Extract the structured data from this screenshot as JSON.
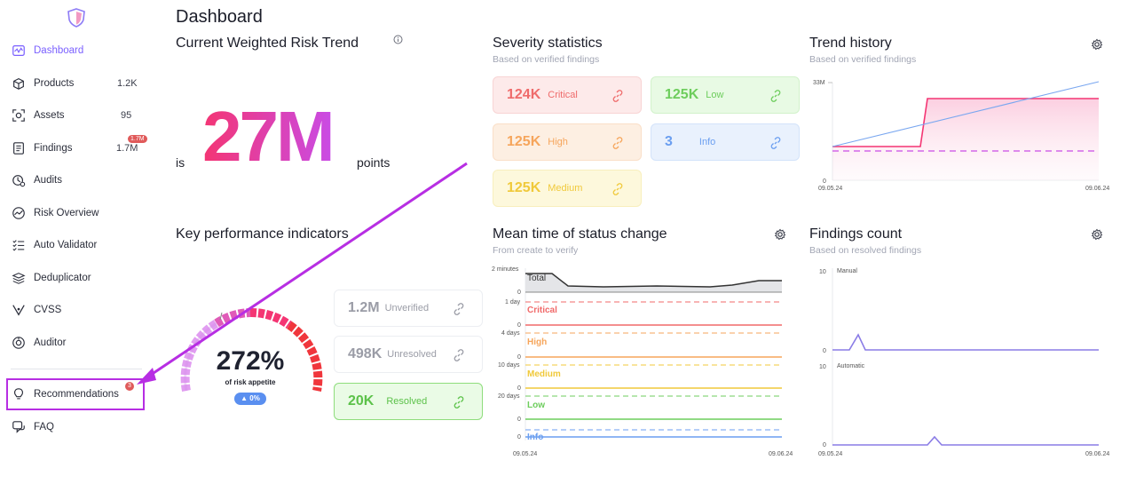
{
  "sidebar": {
    "items": [
      {
        "label": "Dashboard",
        "count": ""
      },
      {
        "label": "Products",
        "count": "1.2K"
      },
      {
        "label": "Assets",
        "count": "95"
      },
      {
        "label": "Findings",
        "count": "1.7M",
        "badge": "1.7M"
      },
      {
        "label": "Audits",
        "count": ""
      },
      {
        "label": "Risk Overview",
        "count": ""
      },
      {
        "label": "Auto Validator",
        "count": ""
      },
      {
        "label": "Deduplicator",
        "count": ""
      },
      {
        "label": "CVSS",
        "count": ""
      },
      {
        "label": "Auditor",
        "count": ""
      },
      {
        "label": "Recommendations",
        "count": "",
        "badge": "3"
      },
      {
        "label": "FAQ",
        "count": ""
      }
    ]
  },
  "page": {
    "title": "Dashboard"
  },
  "risk_trend": {
    "title": "Current Weighted Risk Trend",
    "prefix": "is",
    "value": "27M",
    "suffix": "points"
  },
  "severity": {
    "title": "Severity statistics",
    "subtitle": "Based on verified findings",
    "cards": [
      {
        "value": "124K",
        "label": "Critical"
      },
      {
        "value": "125K",
        "label": "Low"
      },
      {
        "value": "125K",
        "label": "High"
      },
      {
        "value": "3",
        "label": "Info"
      },
      {
        "value": "125K",
        "label": "Medium"
      }
    ]
  },
  "trend_history": {
    "title": "Trend history",
    "subtitle": "Based on verified findings",
    "y_top": "33M",
    "y_zero": "0",
    "x_start": "09.05.24",
    "x_end": "09.06.24"
  },
  "kpi": {
    "title": "Key performance indicators",
    "gauge_value": "272%",
    "gauge_label": "of risk appetite",
    "gauge_change": "▲ 0%",
    "cards": [
      {
        "value": "1.2M",
        "label": "Unverified"
      },
      {
        "value": "498K",
        "label": "Unresolved"
      },
      {
        "value": "20K",
        "label": "Resolved"
      }
    ]
  },
  "mean_time": {
    "title": "Mean time of status change",
    "subtitle": "From create to verify",
    "rows": [
      {
        "name": "Total",
        "top": "2 minutes",
        "zero": "0"
      },
      {
        "name": "Critical",
        "top": "1 day",
        "zero": "0"
      },
      {
        "name": "High",
        "top": "4 days",
        "zero": "0"
      },
      {
        "name": "Medium",
        "top": "10 days",
        "zero": "0"
      },
      {
        "name": "Low",
        "top": "20 days",
        "zero": "0"
      },
      {
        "name": "Info",
        "top": "",
        "zero": "0"
      }
    ],
    "x_start": "09.05.24",
    "x_end": "09.06.24"
  },
  "findings_count": {
    "title": "Findings count",
    "subtitle": "Based on resolved findings",
    "manual": {
      "name": "Manual",
      "top": "10",
      "zero": "0"
    },
    "automatic": {
      "name": "Automatic",
      "top": "10",
      "zero": "0"
    },
    "x_start": "09.05.24",
    "x_end": "09.06.24"
  },
  "colors": {
    "accent": "#7b61ff",
    "critical": "#f06a6a",
    "high": "#f6a55b",
    "medium": "#f0c93a",
    "low": "#6dcd5c",
    "info": "#6a9ef0",
    "annotation": "#b72ee3"
  }
}
